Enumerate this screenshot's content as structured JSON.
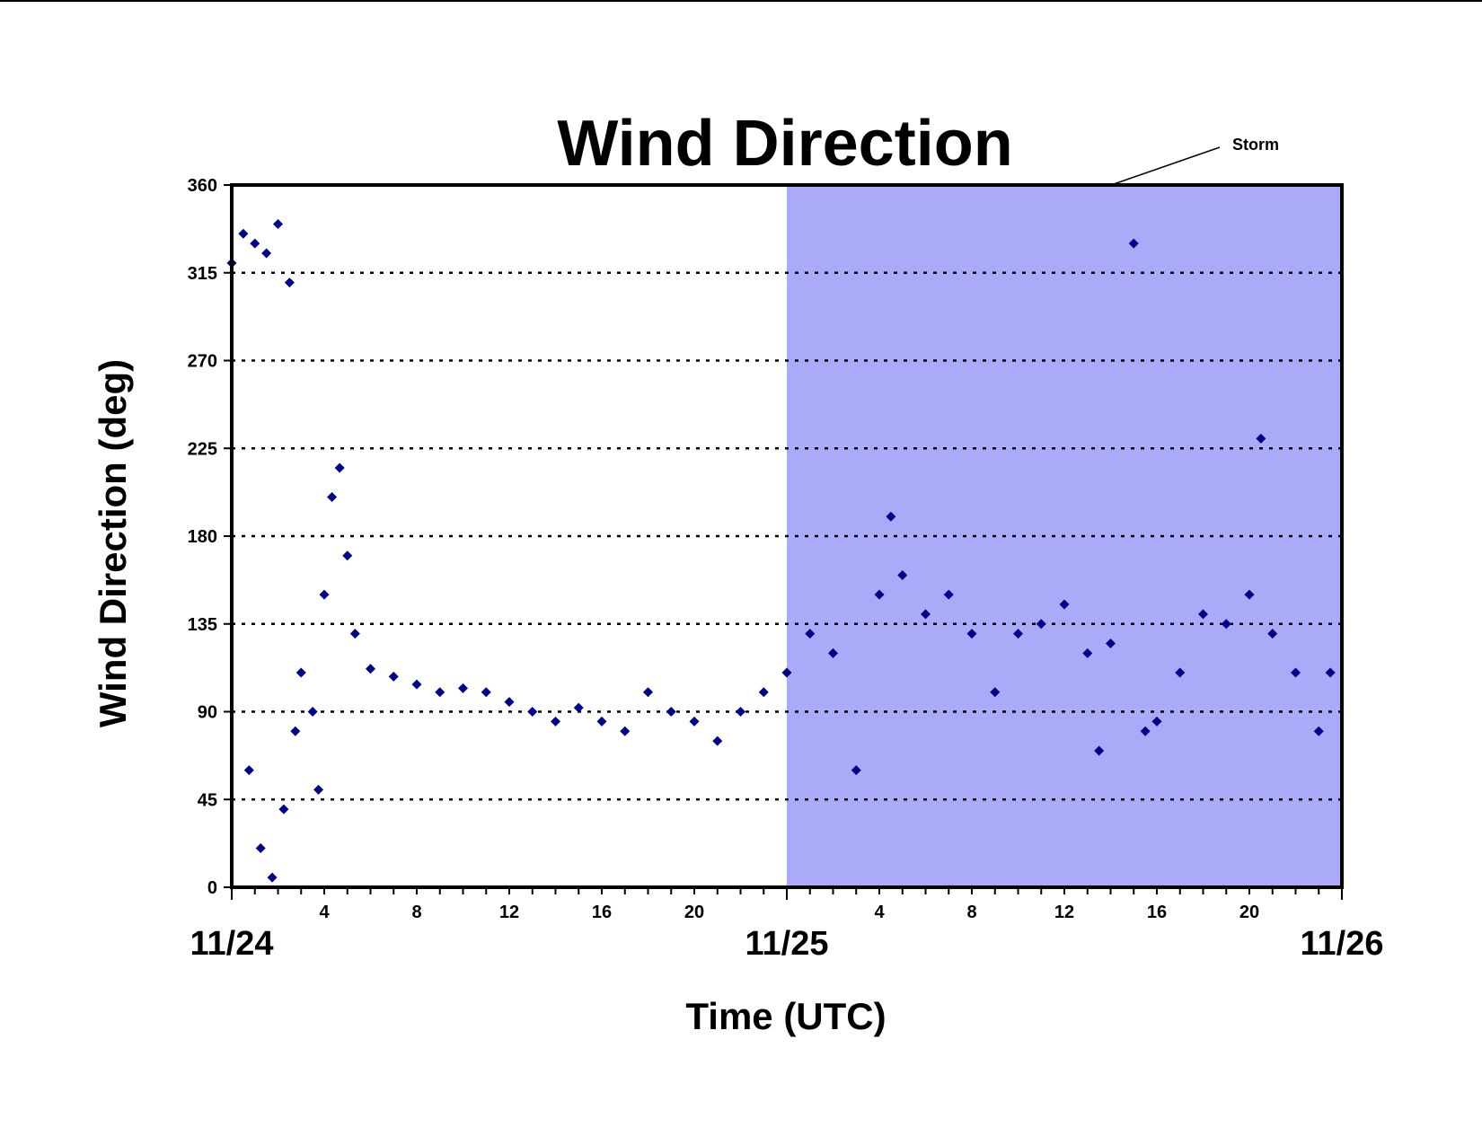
{
  "colors": {
    "background": "#ffffff",
    "storm_shade": "#aaaaf8",
    "marker": "#00008b",
    "gridline": "#000000",
    "axis": "#000000"
  },
  "chart_data": {
    "type": "scatter",
    "title": "Wind Direction",
    "xlabel": "Time (UTC)",
    "ylabel": "Wind Direction (deg)",
    "ylim": [
      0,
      360
    ],
    "xlim_hours": [
      0,
      48
    ],
    "y_ticks": [
      0,
      45,
      90,
      135,
      180,
      225,
      270,
      315,
      360
    ],
    "gridlines": "horizontal-dotted",
    "x_hour_ticks": [
      "4",
      "8",
      "12",
      "16",
      "20",
      "4",
      "8",
      "12",
      "16",
      "20"
    ],
    "x_date_labels": [
      "11/24",
      "11/25",
      "11/26"
    ],
    "marker": "diamond",
    "shaded_region": {
      "label": "Storm",
      "x_start": "11/25 00:00",
      "x_end": "11/26 00:00"
    },
    "annotations": [
      {
        "text": "Storm"
      }
    ],
    "series": [
      {
        "points": [
          {
            "x": "11/24 00:00",
            "y": 320
          },
          {
            "x": "11/24 00:30",
            "y": 335
          },
          {
            "x": "11/24 01:00",
            "y": 330
          },
          {
            "x": "11/24 01:30",
            "y": 325
          },
          {
            "x": "11/24 02:00",
            "y": 340
          },
          {
            "x": "11/24 02:30",
            "y": 310
          },
          {
            "x": "11/24 00:45",
            "y": 60
          },
          {
            "x": "11/24 01:15",
            "y": 20
          },
          {
            "x": "11/24 01:45",
            "y": 5
          },
          {
            "x": "11/24 02:15",
            "y": 40
          },
          {
            "x": "11/24 02:45",
            "y": 80
          },
          {
            "x": "11/24 03:00",
            "y": 110
          },
          {
            "x": "11/24 03:30",
            "y": 90
          },
          {
            "x": "11/24 03:45",
            "y": 50
          },
          {
            "x": "11/24 04:00",
            "y": 150
          },
          {
            "x": "11/24 04:20",
            "y": 200
          },
          {
            "x": "11/24 04:40",
            "y": 215
          },
          {
            "x": "11/24 05:00",
            "y": 170
          },
          {
            "x": "11/24 05:20",
            "y": 130
          },
          {
            "x": "11/24 06:00",
            "y": 112
          },
          {
            "x": "11/24 07:00",
            "y": 108
          },
          {
            "x": "11/24 08:00",
            "y": 104
          },
          {
            "x": "11/24 09:00",
            "y": 100
          },
          {
            "x": "11/24 10:00",
            "y": 102
          },
          {
            "x": "11/24 11:00",
            "y": 100
          },
          {
            "x": "11/24 12:00",
            "y": 95
          },
          {
            "x": "11/24 13:00",
            "y": 90
          },
          {
            "x": "11/24 14:00",
            "y": 85
          },
          {
            "x": "11/24 15:00",
            "y": 92
          },
          {
            "x": "11/24 16:00",
            "y": 85
          },
          {
            "x": "11/24 17:00",
            "y": 80
          },
          {
            "x": "11/24 18:00",
            "y": 100
          },
          {
            "x": "11/24 19:00",
            "y": 90
          },
          {
            "x": "11/24 20:00",
            "y": 85
          },
          {
            "x": "11/24 21:00",
            "y": 75
          },
          {
            "x": "11/24 22:00",
            "y": 90
          },
          {
            "x": "11/24 23:00",
            "y": 100
          },
          {
            "x": "11/25 00:00",
            "y": 110
          },
          {
            "x": "11/25 01:00",
            "y": 130
          },
          {
            "x": "11/25 02:00",
            "y": 120
          },
          {
            "x": "11/25 03:00",
            "y": 60
          },
          {
            "x": "11/25 04:00",
            "y": 150
          },
          {
            "x": "11/25 04:30",
            "y": 190
          },
          {
            "x": "11/25 05:00",
            "y": 160
          },
          {
            "x": "11/25 06:00",
            "y": 140
          },
          {
            "x": "11/25 07:00",
            "y": 150
          },
          {
            "x": "11/25 08:00",
            "y": 130
          },
          {
            "x": "11/25 09:00",
            "y": 100
          },
          {
            "x": "11/25 10:00",
            "y": 130
          },
          {
            "x": "11/25 11:00",
            "y": 135
          },
          {
            "x": "11/25 12:00",
            "y": 145
          },
          {
            "x": "11/25 13:00",
            "y": 120
          },
          {
            "x": "11/25 13:30",
            "y": 70
          },
          {
            "x": "11/25 14:00",
            "y": 125
          },
          {
            "x": "11/25 15:00",
            "y": 330
          },
          {
            "x": "11/25 15:30",
            "y": 80
          },
          {
            "x": "11/25 16:00",
            "y": 85
          },
          {
            "x": "11/25 17:00",
            "y": 110
          },
          {
            "x": "11/25 18:00",
            "y": 140
          },
          {
            "x": "11/25 19:00",
            "y": 135
          },
          {
            "x": "11/25 20:00",
            "y": 150
          },
          {
            "x": "11/25 20:30",
            "y": 230
          },
          {
            "x": "11/25 21:00",
            "y": 130
          },
          {
            "x": "11/25 22:00",
            "y": 110
          },
          {
            "x": "11/25 23:00",
            "y": 80
          },
          {
            "x": "11/25 23:30",
            "y": 110
          }
        ]
      }
    ]
  }
}
